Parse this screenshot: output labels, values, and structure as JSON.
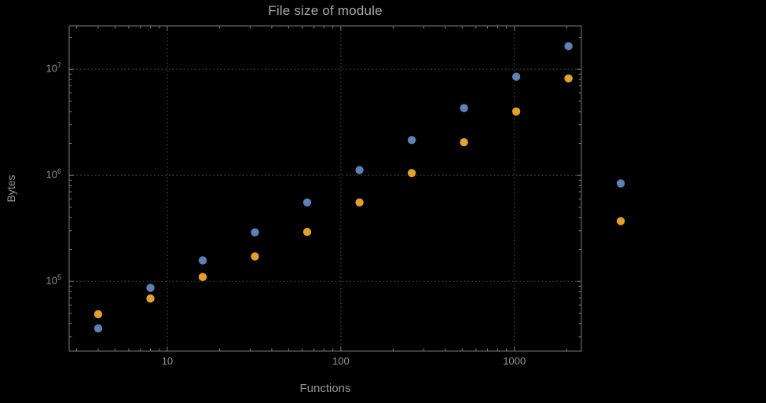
{
  "colors": {
    "background": "#000000",
    "frame": "#7a7a7a",
    "grid": "#565656",
    "text": "#949494",
    "title_text": "#a8a8a8",
    "series_blue": "#5e81b5",
    "series_orange": "#e3a02c"
  },
  "chart_data": {
    "type": "scatter",
    "title": "File size of module",
    "xlabel": "Functions",
    "ylabel": "Bytes",
    "x_scale": "log",
    "y_scale": "log",
    "grid": "dotted",
    "legend": "none",
    "xlim": [
      2.72,
      2430
    ],
    "ylim": [
      22000,
      25600000
    ],
    "x_ticks": [
      {
        "value": 10,
        "label": "10"
      },
      {
        "value": 100,
        "label": "100"
      },
      {
        "value": 1000,
        "label": "1000"
      }
    ],
    "y_ticks": [
      {
        "value": 100000,
        "base": "10",
        "exp": "5"
      },
      {
        "value": 1000000,
        "base": "10",
        "exp": "6"
      },
      {
        "value": 10000000,
        "base": "10",
        "exp": "7"
      }
    ],
    "series": [
      {
        "name": "series-1-blue",
        "color": "#5e81b5",
        "points": [
          [
            4,
            36000
          ],
          [
            8,
            87000
          ],
          [
            16,
            158000
          ],
          [
            32,
            290000
          ],
          [
            64,
            555000
          ],
          [
            128,
            1120000
          ],
          [
            256,
            2150000
          ],
          [
            512,
            4300000
          ],
          [
            1024,
            8500000
          ],
          [
            2048,
            16500000
          ],
          [
            4096,
            840000
          ]
        ]
      },
      {
        "name": "series-2-orange",
        "color": "#e3a02c",
        "points": [
          [
            4,
            49000
          ],
          [
            8,
            69000
          ],
          [
            16,
            110000
          ],
          [
            32,
            172000
          ],
          [
            64,
            293000
          ],
          [
            128,
            555000
          ],
          [
            256,
            1050000
          ],
          [
            512,
            2050000
          ],
          [
            1024,
            4000000
          ],
          [
            2048,
            8200000
          ],
          [
            4096,
            370000
          ]
        ]
      }
    ]
  }
}
